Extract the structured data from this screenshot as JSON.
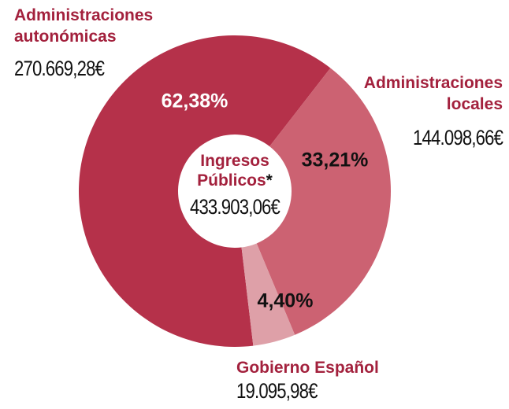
{
  "chart_data": {
    "type": "donut",
    "categories": [
      "Administraciones autonómicas",
      "Administraciones locales",
      "Gobierno Español"
    ],
    "values": [
      62.38,
      33.21,
      4.4
    ],
    "value_labels": [
      "62,38%",
      "33,21%",
      "4,40%"
    ],
    "amount_labels": [
      "270.669,28€",
      "144.098,66€",
      "19.095,98€"
    ],
    "colors": [
      "#b5314a",
      "#cc6272",
      "#dea0a8"
    ],
    "center_label": "Ingresos Públicos",
    "center_note": "*",
    "center_amount": "433.903,06€"
  }
}
